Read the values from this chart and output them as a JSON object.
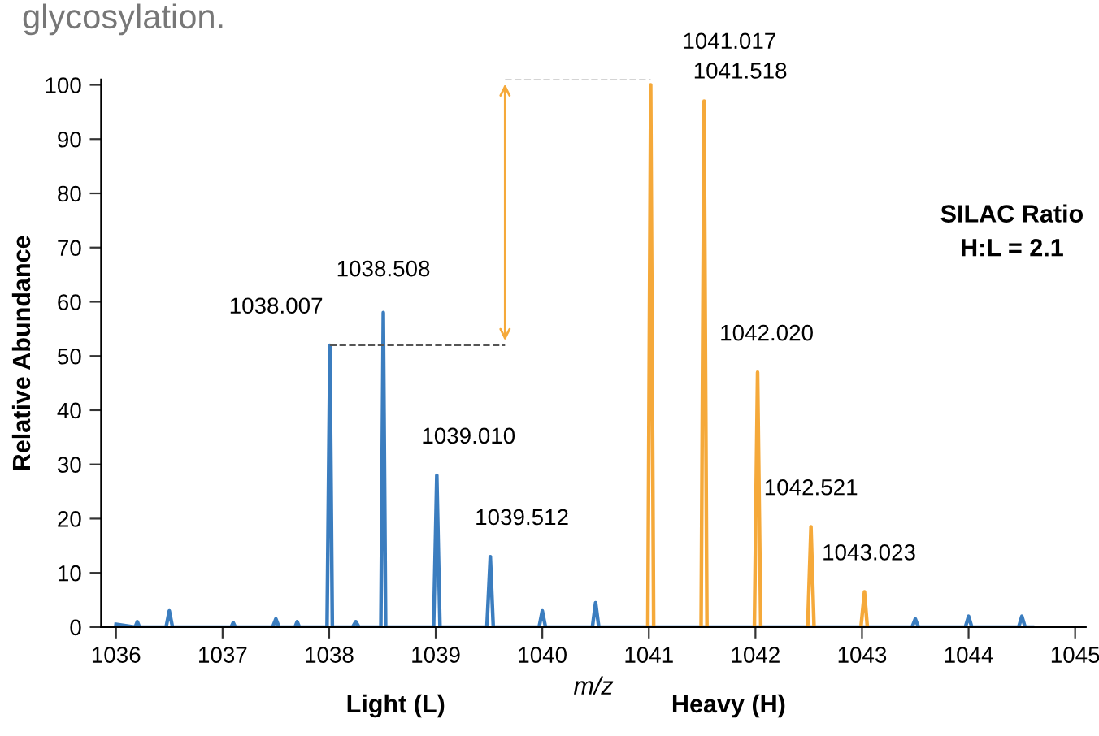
{
  "chart_data": {
    "type": "line",
    "xlabel": "m/z",
    "ylabel": "Relative Abundance",
    "xlim": [
      1035.86,
      1045.1
    ],
    "xticks": [
      1036,
      1037,
      1038,
      1039,
      1040,
      1041,
      1042,
      1043,
      1044,
      1045
    ],
    "ylim": [
      0,
      101
    ],
    "yticks": [
      0,
      10,
      20,
      30,
      40,
      50,
      60,
      70,
      80,
      90,
      100
    ],
    "grid": false,
    "legend": false,
    "marker": "none",
    "line_style": "solid",
    "series": [
      {
        "color": "#3b7dbf",
        "x": [
          1036.0,
          1036.18,
          1036.2,
          1036.22,
          1036.47,
          1036.5,
          1036.53,
          1037.08,
          1037.1,
          1037.12,
          1037.47,
          1037.5,
          1037.53,
          1037.68,
          1037.7,
          1037.72,
          1037.98,
          1038.007,
          1038.03,
          1038.22,
          1038.25,
          1038.28,
          1038.485,
          1038.508,
          1038.53,
          1038.98,
          1039.01,
          1039.04,
          1039.48,
          1039.512,
          1039.54,
          1039.97,
          1040.0,
          1040.03,
          1040.47,
          1040.5,
          1040.53,
          1043.47,
          1043.5,
          1043.53,
          1043.97,
          1044.0,
          1044.03,
          1044.47,
          1044.5,
          1044.53,
          1044.6
        ],
        "values": [
          0.5,
          0,
          1,
          0,
          0,
          3,
          0,
          0,
          0.8,
          0,
          0,
          1.5,
          0,
          0,
          1,
          0,
          0,
          52,
          0,
          0,
          1,
          0,
          0,
          58,
          0,
          0,
          28,
          0,
          0,
          13,
          0,
          0,
          3,
          0,
          0,
          4.5,
          0,
          0,
          1.5,
          0,
          0,
          2,
          0,
          0,
          2,
          0,
          0
        ]
      },
      {
        "color": "#f5a93a",
        "x": [
          1040.99,
          1041.017,
          1041.045,
          1041.05,
          1041.49,
          1041.518,
          1041.545,
          1041.55,
          1041.99,
          1042.02,
          1042.05,
          1042.055,
          1042.49,
          1042.521,
          1042.55,
          1042.555,
          1042.99,
          1043.023,
          1043.05
        ],
        "values": [
          0,
          100,
          0,
          null,
          0,
          97,
          0,
          null,
          0,
          47,
          0,
          null,
          0,
          18.5,
          0,
          null,
          0,
          6.5,
          0
        ]
      }
    ],
    "annotations": [
      "glycosylation.",
      {
        "text": "1038.007",
        "x": 1038.007,
        "y": 52
      },
      {
        "text": "1038.508",
        "x": 1038.508,
        "y": 58
      },
      {
        "text": "1039.010",
        "x": 1039.01,
        "y": 28
      },
      {
        "text": "1039.512",
        "x": 1039.512,
        "y": 13
      },
      {
        "text": "1041.017",
        "x": 1041.017,
        "y": 100
      },
      {
        "text": "1041.518",
        "x": 1041.518,
        "y": 97
      },
      {
        "text": "1042.020",
        "x": 1042.02,
        "y": 47
      },
      {
        "text": "1042.521",
        "x": 1042.521,
        "y": 18.5
      },
      {
        "text": "1043.023",
        "x": 1043.023,
        "y": 6.5
      },
      "SILAC Ratio\nH:L = 2.1",
      "Light (L)",
      "Heavy (H)"
    ]
  }
}
